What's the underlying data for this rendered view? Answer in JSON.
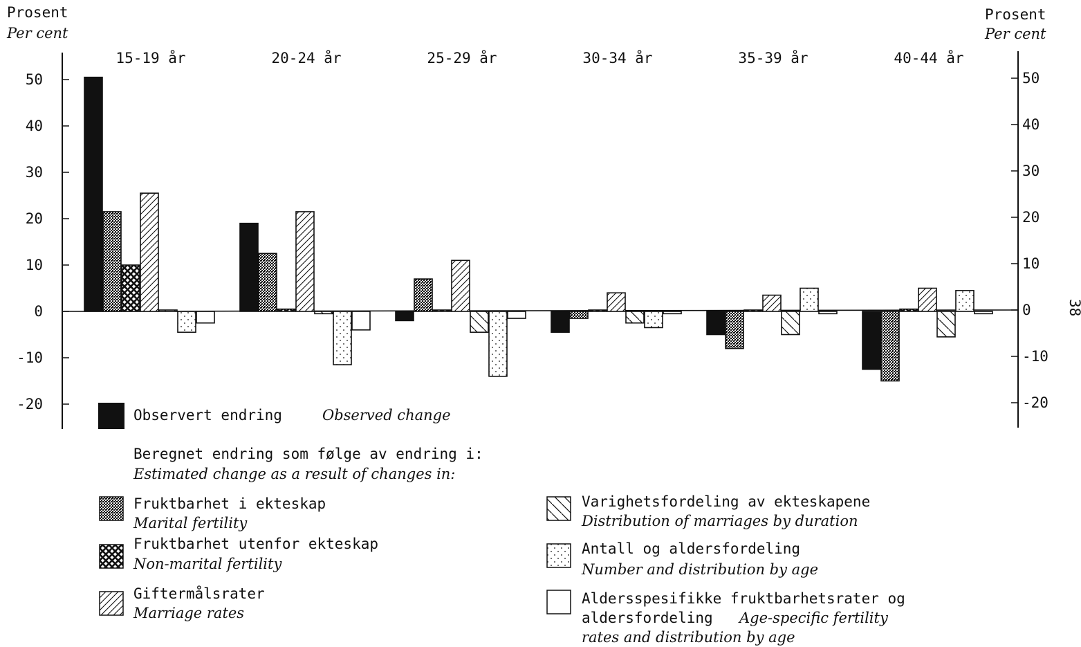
{
  "page_number": "38",
  "axis": {
    "left_label_no": "Prosent",
    "left_label_en": "Per cent",
    "right_label_no": "Prosent",
    "right_label_en": "Per cent"
  },
  "legend": {
    "observed_no": "Observert endring",
    "observed_en": "Observed change",
    "intro_no": "Beregnet endring som følge av endring i:",
    "intro_en": "Estimated change as a result of changes in:",
    "items": [
      {
        "key": "marital",
        "no": "Fruktbarhet i ekteskap",
        "en": "Marital fertility"
      },
      {
        "key": "nonmarital",
        "no": "Fruktbarhet utenfor ekteskap",
        "en": "Non-marital fertility"
      },
      {
        "key": "marriage",
        "no": "Giftermålsrater",
        "en": "Marriage rates"
      },
      {
        "key": "duration",
        "no": "Varighetsfordeling av ekteskapene",
        "en": "Distribution of marriages by duration"
      },
      {
        "key": "number",
        "no": "Antall og aldersfordeling",
        "en": "Number and distribution by age"
      },
      {
        "key": "agespec",
        "no": "Aldersspesifikke fruktbarhetsrater og",
        "no2": "aldersfordeling",
        "en": "Age-specific fertility",
        "en2": "rates and distribution by age"
      }
    ]
  },
  "chart_data": {
    "type": "bar",
    "xlabel": "",
    "ylabel": "Prosent / Per cent",
    "ylim": [
      -25,
      55
    ],
    "yticks": [
      -20,
      -10,
      0,
      10,
      20,
      30,
      40,
      50
    ],
    "grid": false,
    "categories": [
      "15-19 år",
      "20-24 år",
      "25-29 år",
      "30-34 år",
      "35-39 år",
      "40-44 år"
    ],
    "series": [
      {
        "name": "Observert endring",
        "key": "observed",
        "values": [
          50.5,
          19.0,
          -2.0,
          -4.5,
          -5.0,
          -12.5
        ]
      },
      {
        "name": "Fruktbarhet i ekteskap",
        "key": "marital",
        "values": [
          21.5,
          12.5,
          7.0,
          -1.5,
          -8.0,
          -15.0
        ]
      },
      {
        "name": "Fruktbarhet utenfor ekteskap",
        "key": "nonmarital",
        "values": [
          10.0,
          0.5,
          0.0,
          0.0,
          0.0,
          0.5
        ]
      },
      {
        "name": "Giftermålsrater",
        "key": "marriage",
        "values": [
          25.5,
          21.5,
          11.0,
          4.0,
          3.5,
          5.0
        ]
      },
      {
        "name": "Varighetsfordeling av ekteskapene",
        "key": "duration",
        "values": [
          0.0,
          -0.5,
          -4.5,
          -2.5,
          -5.0,
          -5.5
        ]
      },
      {
        "name": "Antall og aldersfordeling",
        "key": "number",
        "values": [
          -4.5,
          -11.5,
          -14.0,
          -3.5,
          5.0,
          4.5
        ]
      },
      {
        "name": "Aldersspesifikke fruktbarhetsrater og aldersfordeling",
        "key": "agespec",
        "values": [
          -2.5,
          -4.0,
          -1.5,
          -0.5,
          -0.5,
          -0.5
        ]
      }
    ]
  }
}
